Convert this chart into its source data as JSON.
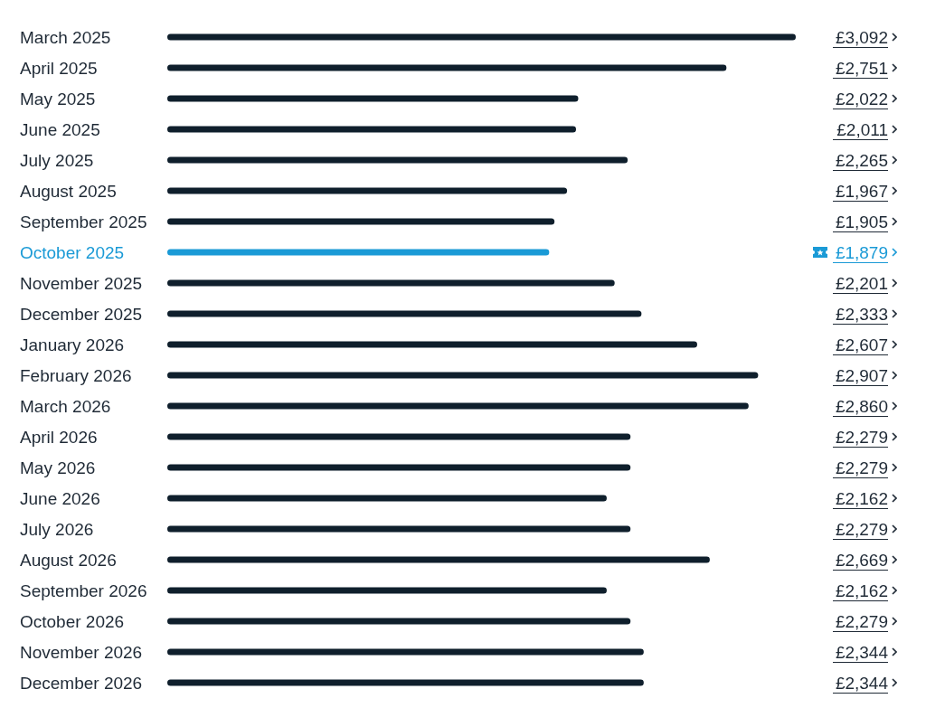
{
  "chart_data": {
    "type": "bar",
    "categories": [
      "March 2025",
      "April 2025",
      "May 2025",
      "June 2025",
      "July 2025",
      "August 2025",
      "September 2025",
      "October 2025",
      "November 2025",
      "December 2025",
      "January 2026",
      "February 2026",
      "March 2026",
      "April 2026",
      "May 2026",
      "June 2026",
      "July 2026",
      "August 2026",
      "September 2026",
      "October 2026",
      "November 2026",
      "December 2026"
    ],
    "values": [
      3092,
      2751,
      2022,
      2011,
      2265,
      1967,
      1905,
      1879,
      2201,
      2333,
      2607,
      2907,
      2860,
      2279,
      2279,
      2162,
      2279,
      2669,
      2162,
      2279,
      2344,
      2344
    ],
    "value_labels": [
      "£3,092",
      "£2,751",
      "£2,022",
      "£2,011",
      "£2,265",
      "£1,967",
      "£1,905",
      "£1,879",
      "£2,201",
      "£2,333",
      "£2,607",
      "£2,907",
      "£2,860",
      "£2,279",
      "£2,279",
      "£2,162",
      "£2,279",
      "£2,669",
      "£2,162",
      "£2,279",
      "£2,344",
      "£2,344"
    ],
    "colors": [
      "#0f1f2c",
      "#0f1f2c",
      "#0f1f2c",
      "#0f1f2c",
      "#0f1f2c",
      "#0f1f2c",
      "#0f1f2c",
      "#1a9ad6",
      "#0f1f2c",
      "#0f1f2c",
      "#0f1f2c",
      "#0f1f2c",
      "#0f1f2c",
      "#0f1f2c",
      "#0f1f2c",
      "#0f1f2c",
      "#0f1f2c",
      "#0f1f2c",
      "#0f1f2c",
      "#0f1f2c",
      "#0f1f2c",
      "#0f1f2c"
    ],
    "orientation": "horizontal"
  }
}
